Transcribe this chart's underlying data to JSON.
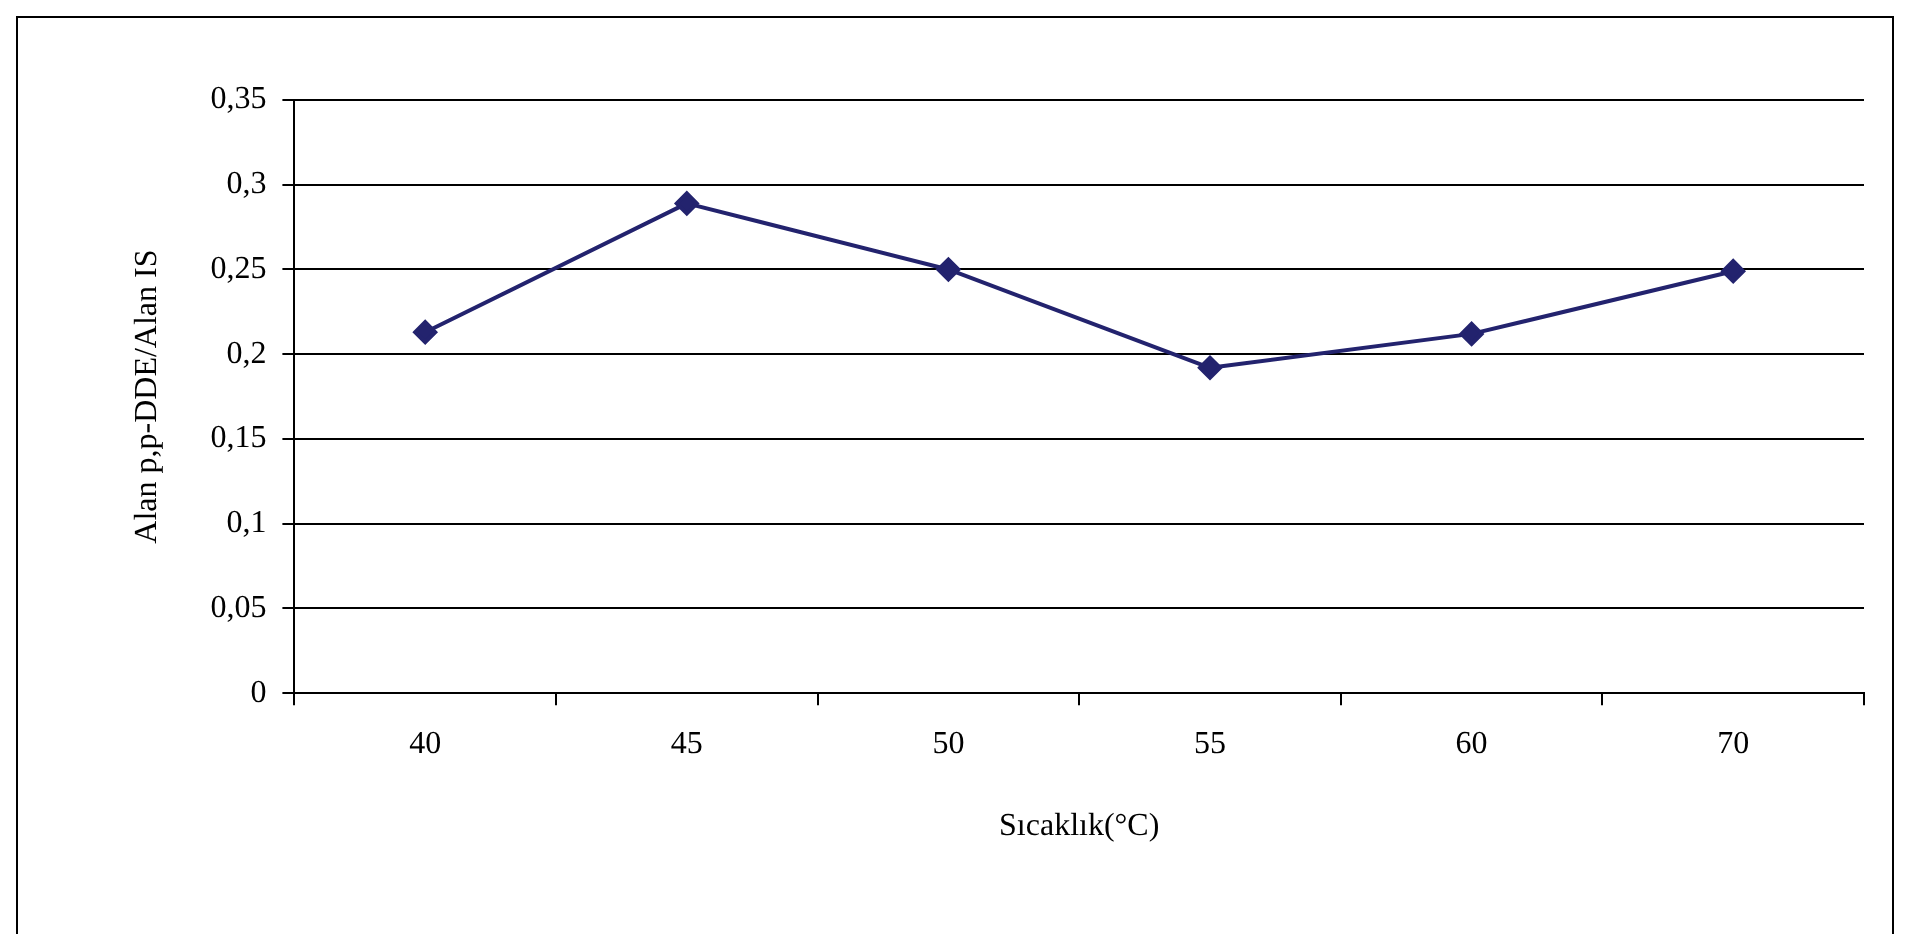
{
  "chart_data": {
    "type": "line",
    "xlabel": "Sıcaklık(°C)",
    "ylabel": "Alan p,p-DDE/Alan IS",
    "categories": [
      "40",
      "45",
      "50",
      "55",
      "60",
      "70"
    ],
    "series": [
      {
        "color": "#23236e",
        "values": [
          0.213,
          0.289,
          0.25,
          0.192,
          0.212,
          0.249
        ]
      }
    ],
    "ylim": [
      0,
      0.35
    ],
    "yticks": [
      0,
      {
        "value": 0.05,
        "label": "0,05"
      },
      {
        "value": 0.1,
        "label": "0,1"
      },
      {
        "value": 0.15,
        "label": "0,15"
      },
      {
        "value": 0.2,
        "label": "0,2"
      },
      {
        "value": 0.25,
        "label": "0,25"
      },
      {
        "value": 0.3,
        "label": "0,3"
      },
      {
        "value": 0.35,
        "label": "0,35"
      }
    ],
    "grid": "y",
    "marker": "diamond",
    "line_style": "solid"
  }
}
